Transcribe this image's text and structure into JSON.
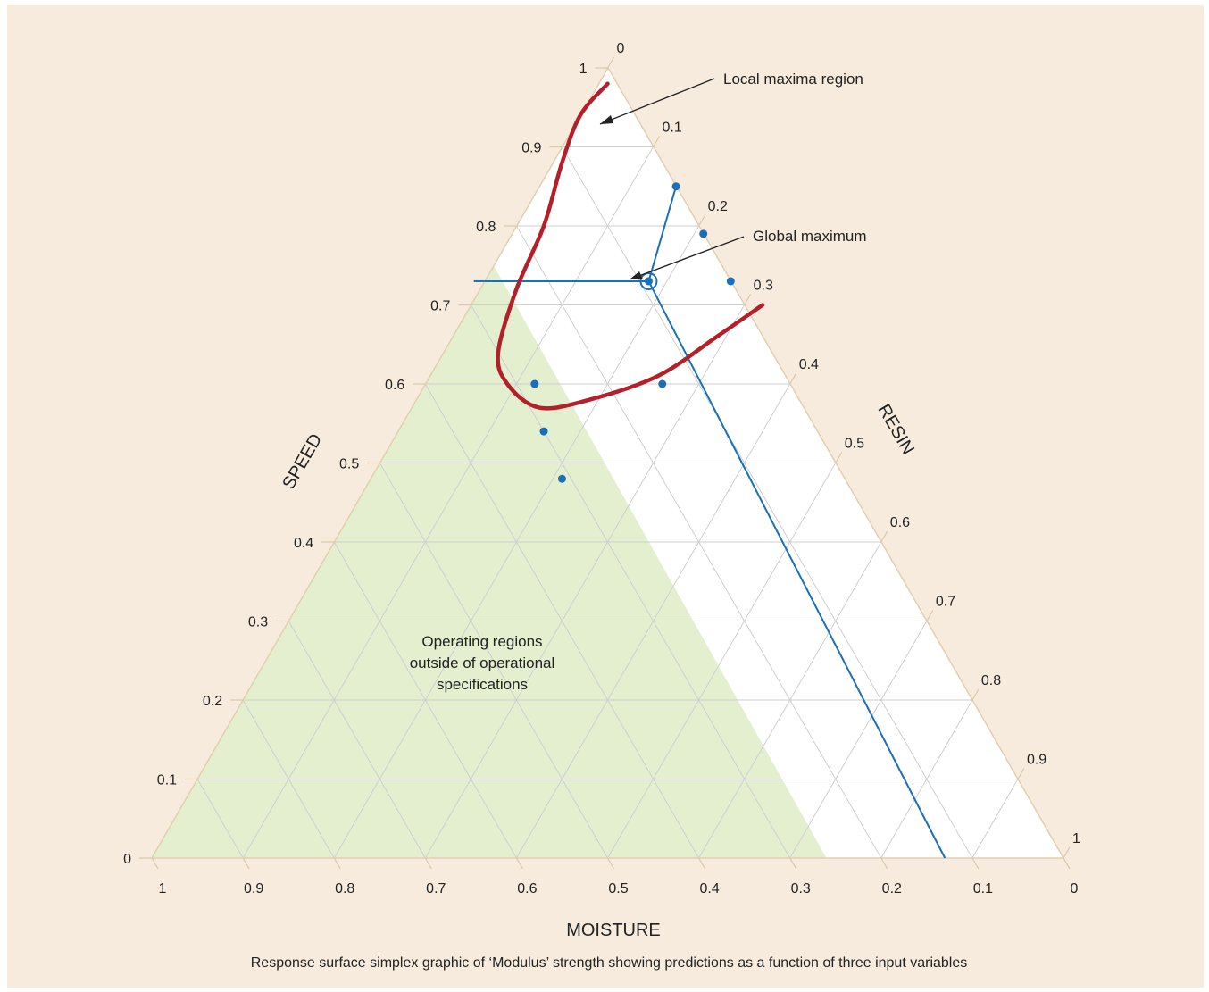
{
  "colors": {
    "background": "#f7ebdd",
    "plot_area": "#ffffff",
    "out_of_spec_region": "#e3efcf",
    "grid": "#cfcfcf",
    "local_maxima_curve": "#b3202a",
    "design_points": "#1a6fb8",
    "contour_lines": "#1a6fb8",
    "outline": "#e2cfb2"
  },
  "chart_data": {
    "type": "ternary",
    "axes": {
      "speed": {
        "label": "SPEED",
        "ticks": [
          "0",
          "0.1",
          "0.2",
          "0.3",
          "0.4",
          "0.5",
          "0.6",
          "0.7",
          "0.8",
          "0.9",
          "1"
        ]
      },
      "moisture": {
        "label": "MOISTURE",
        "ticks": [
          "1",
          "0.9",
          "0.8",
          "0.7",
          "0.6",
          "0.5",
          "0.4",
          "0.3",
          "0.2",
          "0.1",
          "0"
        ]
      },
      "resin": {
        "label": "RESIN",
        "ticks": [
          "0",
          "0.1",
          "0.2",
          "0.3",
          "0.4",
          "0.5",
          "0.6",
          "0.7",
          "0.8",
          "0.9",
          "1"
        ]
      }
    },
    "grid": true,
    "design_points": [
      {
        "speed": 0.85,
        "resin": 0.15
      },
      {
        "speed": 0.79,
        "resin": 0.21
      },
      {
        "speed": 0.73,
        "resin": 0.27
      },
      {
        "speed": 0.6,
        "resin": 0.26
      },
      {
        "speed": 0.6,
        "resin": 0.12
      },
      {
        "speed": 0.54,
        "resin": 0.16
      },
      {
        "speed": 0.48,
        "resin": 0.21
      }
    ],
    "global_maximum": {
      "speed": 0.73,
      "resin": 0.18
    },
    "contour_lines": [
      [
        {
          "speed": 0.73,
          "resin": 0.18
        },
        {
          "speed": 0.73,
          "resin": 0.0
        }
      ],
      [
        {
          "speed": 0.73,
          "resin": 0.18
        },
        {
          "speed": 0.85,
          "resin": 0.15
        }
      ],
      [
        {
          "speed": 0.73,
          "resin": 0.18
        },
        {
          "speed": 0.0,
          "resin": 0.87
        }
      ]
    ],
    "local_maxima_curve": [
      {
        "speed": 0.98,
        "resin": 0.01
      },
      {
        "speed": 0.94,
        "resin": 0.0
      },
      {
        "speed": 0.88,
        "resin": 0.01
      },
      {
        "speed": 0.8,
        "resin": 0.03
      },
      {
        "speed": 0.72,
        "resin": 0.04
      },
      {
        "speed": 0.64,
        "resin": 0.06
      },
      {
        "speed": 0.6,
        "resin": 0.09
      },
      {
        "speed": 0.57,
        "resin": 0.14
      },
      {
        "speed": 0.58,
        "resin": 0.19
      },
      {
        "speed": 0.61,
        "resin": 0.25
      },
      {
        "speed": 0.66,
        "resin": 0.29
      },
      {
        "speed": 0.7,
        "resin": 0.32
      }
    ],
    "out_of_spec_region": [
      {
        "speed": 0.75,
        "resin": 0.0
      },
      {
        "speed": 0.0,
        "resin": 0.0
      },
      {
        "speed": 0.0,
        "resin": 0.74
      }
    ],
    "annotations": {
      "local_maxima_label": "Local maxima region",
      "global_maximum_label": "Global maximum",
      "region_label_lines": [
        "Operating regions",
        "outside of operational",
        "specifications"
      ]
    },
    "caption": "Response surface simplex graphic of ‘Modulus’ strength showing predictions as a function of three input variables"
  }
}
